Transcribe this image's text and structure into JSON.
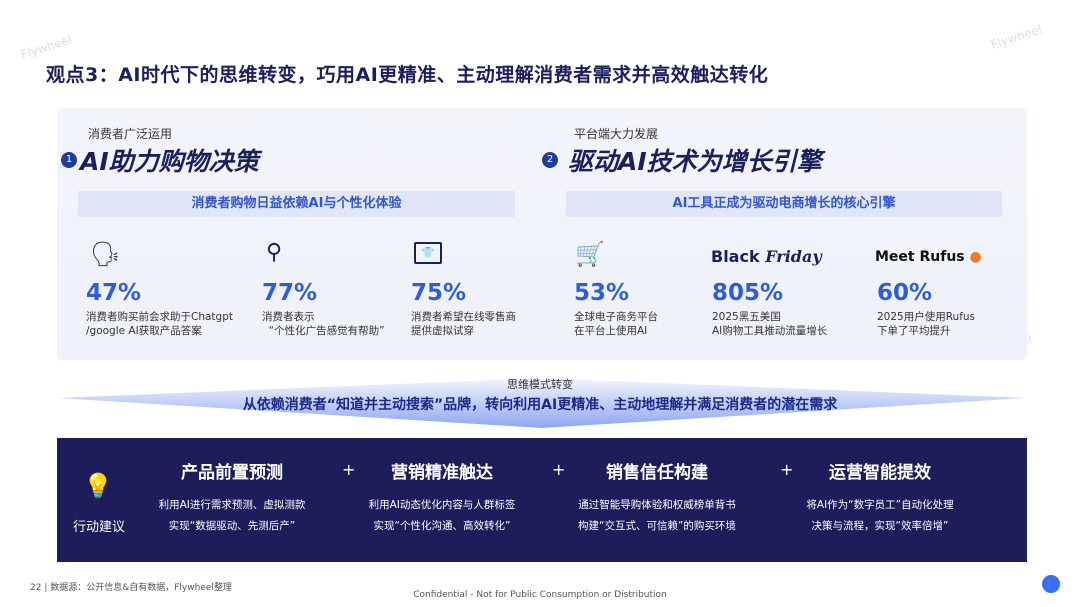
{
  "title": "观点3：AI时代下的思维转变，巧用AI更精准、主动理解消费者需求并高效触达转化",
  "watermark": "Flywheel",
  "section1": {
    "number": "1",
    "subtitle": "消费者广泛运用",
    "heading": "AI助力购物决策",
    "bar": "消费者购物日益依赖AI与个性化体验",
    "stats": [
      {
        "icon": "ai-head-icon",
        "value": "47%",
        "desc": "消费者购买前会求助于Chatgpt\n/google AI获取产品答案"
      },
      {
        "icon": "sliders-icon",
        "value": "77%",
        "desc": "消费者表示\n  “个性化广告感觉有帮助”"
      },
      {
        "icon": "monitor-shirt-icon",
        "value": "75%",
        "desc": "消费者希望在线零售商\n提供虚拟试穿"
      }
    ]
  },
  "section2": {
    "number": "2",
    "subtitle": "平台端大力发展",
    "heading": "驱动AI技术为增长引擎",
    "bar": "AI工具正成为驱动电商增长的核心引擎",
    "stats": [
      {
        "icon": "cart-icon",
        "logo": "",
        "value": "53%",
        "desc": "全球电子商务平台\n在平台上使用AI"
      },
      {
        "logo_a": "Black",
        "logo_b": "Friday",
        "value": "805%",
        "desc": "2025黑五美国\nAI购物工具推动流量增长"
      },
      {
        "logo": "Meet Rufus",
        "value": "60%",
        "desc": "2025用户使用Rufus\n下单了平均提升"
      }
    ]
  },
  "shift": {
    "label": "思维模式转变",
    "text": "从依赖消费者“知道并主动搜索”品牌，转向利用AI更精准、主动地理解并满足消费者的潜在需求"
  },
  "actions": {
    "label": "行动建议",
    "plus": "+",
    "items": [
      {
        "title": "产品前置预测",
        "desc": "利用AI进行需求预测、虚拟测款\n实现“数据驱动、先测后产”"
      },
      {
        "title": "营销精准触达",
        "desc": "利用AI动态优化内容与人群标签\n实现“个性化沟通、高效转化”"
      },
      {
        "title": "销售信任构建",
        "desc": "通过智能导购体验和权威榜单背书\n构建“交互式、可信赖”的购买环境"
      },
      {
        "title": "运营智能提效",
        "desc": "将AI作为“数字员工”自动化处理\n决策与流程，实现“效率倍增”"
      }
    ]
  },
  "footer": {
    "page": "22",
    "source": "数据源：公开信息&自有数据，Flywheel整理",
    "confidential": "Confidential - Not for Public Consumption or Distribution"
  },
  "colors": {
    "navy": "#1e1d5c",
    "accent": "#2f5be0"
  }
}
